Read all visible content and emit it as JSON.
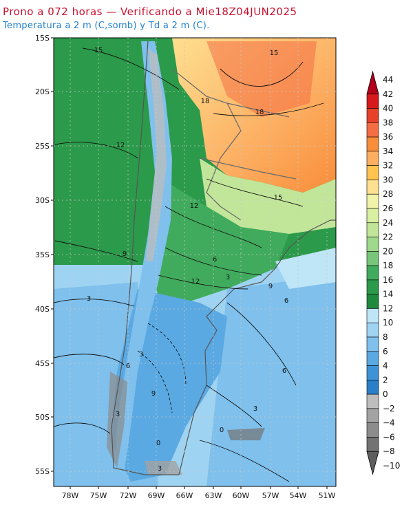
{
  "title": "Prono a 072 horas — Verificando a Mie18Z04JUN2025",
  "subtitle": "Temperatura a 2 m (C,somb) y Td a 2 m (C).",
  "lat_labels": [
    "15S",
    "20S",
    "25S",
    "30S",
    "35S",
    "40S",
    "45S",
    "50S",
    "55S"
  ],
  "lon_labels": [
    "78W",
    "75W",
    "72W",
    "69W",
    "66W",
    "63W",
    "60W",
    "57W",
    "54W",
    "51W"
  ],
  "colorbar": {
    "levels": [
      "44",
      "42",
      "40",
      "38",
      "36",
      "34",
      "32",
      "30",
      "28",
      "26",
      "24",
      "22",
      "20",
      "18",
      "16",
      "14",
      "12",
      "10",
      "8",
      "6",
      "4",
      "2",
      "0",
      "−2",
      "−4",
      "−6",
      "−8",
      "−10"
    ],
    "colors": [
      "#b3001b",
      "#d7191c",
      "#e8412a",
      "#f46d43",
      "#f88d3a",
      "#fdae61",
      "#fec44f",
      "#fee090",
      "#f0f3a8",
      "#d9f0a3",
      "#c2e699",
      "#9ed98c",
      "#78c679",
      "#41ab5d",
      "#2b9a4a",
      "#1f8a3e",
      "#bfe6f7",
      "#9fd3f2",
      "#7fc0ec",
      "#5aa9e2",
      "#3d93d6",
      "#2a7fc9",
      "#bdbdbd",
      "#a3a3a3",
      "#8c8c8c",
      "#737373",
      "#5e5e5e"
    ]
  },
  "contour_labels": [
    "15",
    "15",
    "18",
    "12",
    "18",
    "15",
    "12",
    "9",
    "6",
    "3",
    "12",
    "9",
    "6",
    "3",
    "3",
    "6",
    "9",
    "3",
    "6",
    "3",
    "0",
    "0",
    "3"
  ]
}
